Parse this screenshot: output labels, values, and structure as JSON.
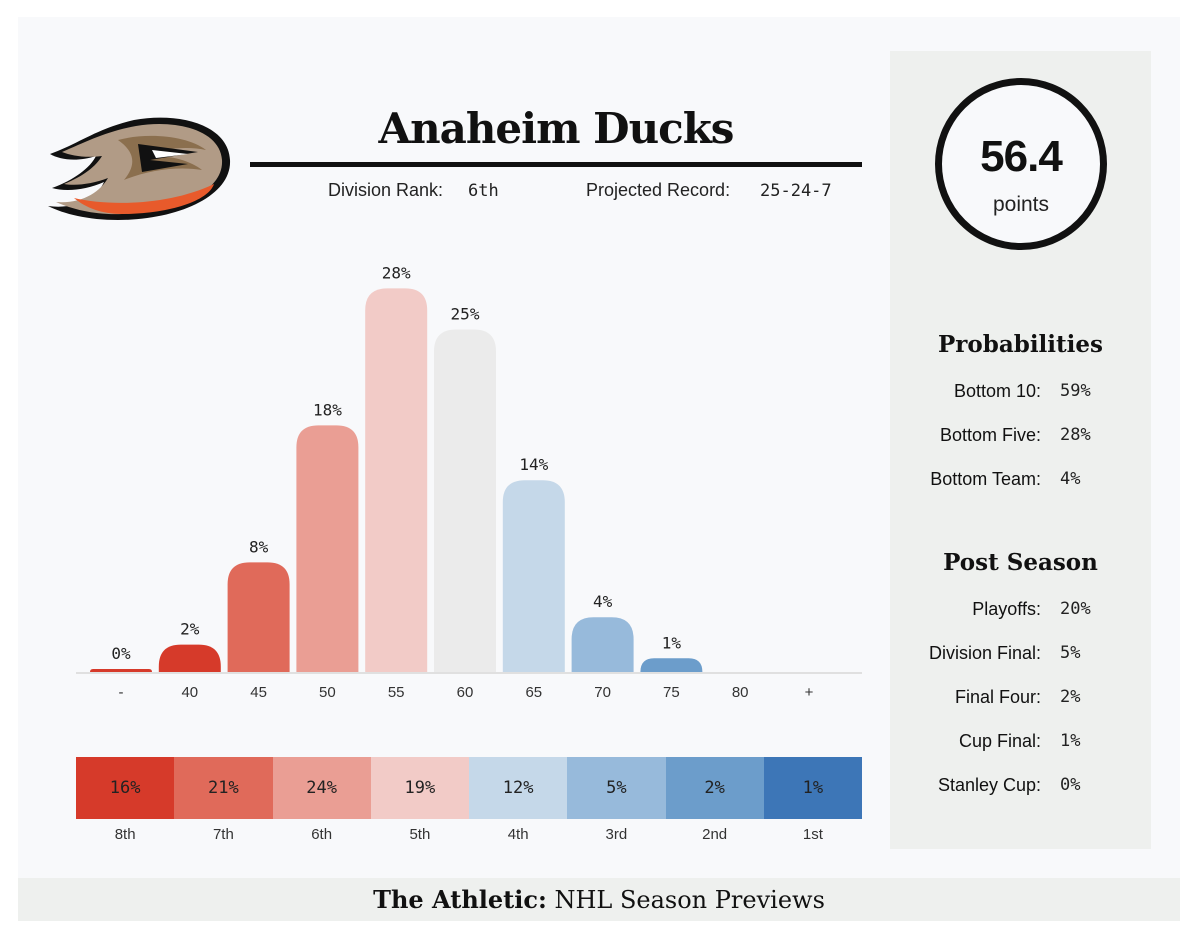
{
  "header": {
    "team": "Anaheim Ducks",
    "division_rank_label": "Division Rank:",
    "division_rank": "6th",
    "record_label": "Projected Record:",
    "record": "25-24-7"
  },
  "points": {
    "value": "56.4",
    "unit": "points"
  },
  "probabilities": {
    "title": "Probabilities",
    "rows": [
      {
        "label": "Bottom 10:",
        "value": "59%"
      },
      {
        "label": "Bottom Five:",
        "value": "28%"
      },
      {
        "label": "Bottom Team:",
        "value": "4%"
      }
    ]
  },
  "postseason": {
    "title": "Post Season",
    "rows": [
      {
        "label": "Playoffs:",
        "value": "20%"
      },
      {
        "label": "Division Final:",
        "value": "5%"
      },
      {
        "label": "Final Four:",
        "value": "2%"
      },
      {
        "label": "Cup Final:",
        "value": "1%"
      },
      {
        "label": "Stanley Cup:",
        "value": "0%"
      }
    ]
  },
  "footer": {
    "brand": "The Athletic:",
    "text": "NHL Season Previews"
  },
  "chart_data": [
    {
      "type": "bar",
      "categories": [
        "-",
        "40",
        "45",
        "50",
        "55",
        "60",
        "65",
        "70",
        "75",
        "80",
        "+"
      ],
      "values": [
        0,
        2,
        8,
        18,
        28,
        25,
        14,
        4,
        1,
        null,
        null
      ],
      "value_labels": [
        "0%",
        "2%",
        "8%",
        "18%",
        "28%",
        "25%",
        "14%",
        "4%",
        "1%",
        "",
        ""
      ],
      "colors": [
        "#d63a2a",
        "#d63a2a",
        "#e06a5a",
        "#ea9e94",
        "#f2cbc7",
        "#ebebeb",
        "#c5d8e9",
        "#97badb",
        "#6c9dcb",
        "#3d76b7",
        "#3d76b7"
      ],
      "ylim": [
        0,
        30
      ]
    },
    {
      "type": "table",
      "categories": [
        "8th",
        "7th",
        "6th",
        "5th",
        "4th",
        "3rd",
        "2nd",
        "1st"
      ],
      "values": [
        16,
        21,
        24,
        19,
        12,
        5,
        2,
        1
      ],
      "value_labels": [
        "16%",
        "21%",
        "24%",
        "19%",
        "12%",
        "5%",
        "2%",
        "1%"
      ],
      "colors": [
        "#d63a2a",
        "#e06a5a",
        "#ea9e94",
        "#f2cbc7",
        "#c5d8e9",
        "#97badb",
        "#6c9dcb",
        "#3d76b7"
      ]
    }
  ]
}
